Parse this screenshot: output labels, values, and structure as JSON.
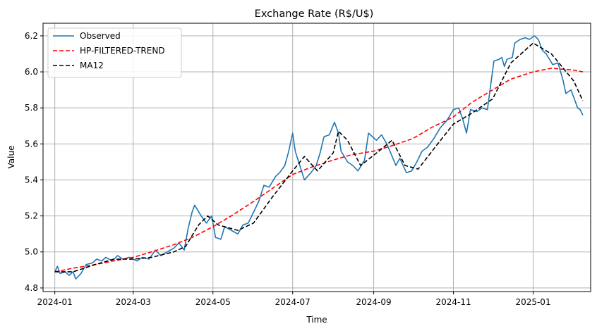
{
  "chart_data": {
    "type": "line",
    "title": "Exchange Rate (R$/U$)",
    "xlabel": "Time",
    "ylabel": "Value",
    "xlim": [
      "2023-12-23",
      "2025-02-14"
    ],
    "ylim": [
      4.78,
      6.27
    ],
    "x_ticks": [
      "2024-01",
      "2024-03",
      "2024-05",
      "2024-07",
      "2024-09",
      "2024-11",
      "2025-01"
    ],
    "y_ticks": [
      4.8,
      5.0,
      5.2,
      5.4,
      5.6,
      5.8,
      6.0,
      6.2
    ],
    "grid": true,
    "legend_position": "top-left",
    "series": [
      {
        "name": "Observed",
        "color": "#1f77b4",
        "style": "solid",
        "points": [
          [
            "2024-01-01",
            4.89
          ],
          [
            "2024-01-03",
            4.92
          ],
          [
            "2024-01-05",
            4.88
          ],
          [
            "2024-01-09",
            4.89
          ],
          [
            "2024-01-12",
            4.87
          ],
          [
            "2024-01-15",
            4.89
          ],
          [
            "2024-01-17",
            4.85
          ],
          [
            "2024-01-21",
            4.88
          ],
          [
            "2024-01-25",
            4.93
          ],
          [
            "2024-01-30",
            4.94
          ],
          [
            "2024-02-02",
            4.96
          ],
          [
            "2024-02-06",
            4.95
          ],
          [
            "2024-02-09",
            4.97
          ],
          [
            "2024-02-14",
            4.95
          ],
          [
            "2024-02-18",
            4.98
          ],
          [
            "2024-02-22",
            4.96
          ],
          [
            "2024-02-27",
            4.97
          ],
          [
            "2024-03-04",
            4.95
          ],
          [
            "2024-03-08",
            4.97
          ],
          [
            "2024-03-13",
            4.96
          ],
          [
            "2024-03-18",
            5.01
          ],
          [
            "2024-03-22",
            4.98
          ],
          [
            "2024-03-27",
            5.0
          ],
          [
            "2024-04-01",
            5.02
          ],
          [
            "2024-04-05",
            5.05
          ],
          [
            "2024-04-09",
            5.01
          ],
          [
            "2024-04-12",
            5.13
          ],
          [
            "2024-04-15",
            5.22
          ],
          [
            "2024-04-17",
            5.26
          ],
          [
            "2024-04-22",
            5.2
          ],
          [
            "2024-04-26",
            5.16
          ],
          [
            "2024-04-30",
            5.2
          ],
          [
            "2024-05-03",
            5.08
          ],
          [
            "2024-05-07",
            5.07
          ],
          [
            "2024-05-10",
            5.14
          ],
          [
            "2024-05-15",
            5.12
          ],
          [
            "2024-05-20",
            5.1
          ],
          [
            "2024-05-24",
            5.15
          ],
          [
            "2024-05-28",
            5.16
          ],
          [
            "2024-06-01",
            5.22
          ],
          [
            "2024-06-05",
            5.28
          ],
          [
            "2024-06-09",
            5.37
          ],
          [
            "2024-06-13",
            5.36
          ],
          [
            "2024-06-18",
            5.42
          ],
          [
            "2024-06-21",
            5.44
          ],
          [
            "2024-06-25",
            5.48
          ],
          [
            "2024-06-28",
            5.56
          ],
          [
            "2024-07-01",
            5.66
          ],
          [
            "2024-07-03",
            5.56
          ],
          [
            "2024-07-06",
            5.49
          ],
          [
            "2024-07-10",
            5.4
          ],
          [
            "2024-07-15",
            5.44
          ],
          [
            "2024-07-19",
            5.48
          ],
          [
            "2024-07-22",
            5.55
          ],
          [
            "2024-07-25",
            5.64
          ],
          [
            "2024-07-29",
            5.65
          ],
          [
            "2024-08-02",
            5.72
          ],
          [
            "2024-08-05",
            5.66
          ],
          [
            "2024-08-07",
            5.56
          ],
          [
            "2024-08-12",
            5.5
          ],
          [
            "2024-08-16",
            5.48
          ],
          [
            "2024-08-20",
            5.45
          ],
          [
            "2024-08-25",
            5.51
          ],
          [
            "2024-08-28",
            5.66
          ],
          [
            "2024-09-03",
            5.62
          ],
          [
            "2024-09-07",
            5.65
          ],
          [
            "2024-09-11",
            5.6
          ],
          [
            "2024-09-14",
            5.55
          ],
          [
            "2024-09-18",
            5.48
          ],
          [
            "2024-09-21",
            5.52
          ],
          [
            "2024-09-26",
            5.44
          ],
          [
            "2024-09-30",
            5.45
          ],
          [
            "2024-10-04",
            5.5
          ],
          [
            "2024-10-08",
            5.56
          ],
          [
            "2024-10-12",
            5.58
          ],
          [
            "2024-10-17",
            5.63
          ],
          [
            "2024-10-22",
            5.69
          ],
          [
            "2024-10-27",
            5.73
          ],
          [
            "2024-11-01",
            5.79
          ],
          [
            "2024-11-05",
            5.8
          ],
          [
            "2024-11-08",
            5.74
          ],
          [
            "2024-11-11",
            5.66
          ],
          [
            "2024-11-14",
            5.79
          ],
          [
            "2024-11-19",
            5.78
          ],
          [
            "2024-11-23",
            5.8
          ],
          [
            "2024-11-27",
            5.79
          ],
          [
            "2024-12-02",
            6.06
          ],
          [
            "2024-12-06",
            6.07
          ],
          [
            "2024-12-08",
            6.08
          ],
          [
            "2024-12-10",
            6.03
          ],
          [
            "2024-12-12",
            6.07
          ],
          [
            "2024-12-16",
            6.08
          ],
          [
            "2024-12-18",
            6.16
          ],
          [
            "2024-12-22",
            6.18
          ],
          [
            "2024-12-26",
            6.19
          ],
          [
            "2024-12-29",
            6.18
          ],
          [
            "2025-01-02",
            6.2
          ],
          [
            "2025-01-05",
            6.18
          ],
          [
            "2025-01-08",
            6.12
          ],
          [
            "2025-01-11",
            6.1
          ],
          [
            "2025-01-16",
            6.04
          ],
          [
            "2025-01-20",
            6.05
          ],
          [
            "2025-01-24",
            5.95
          ],
          [
            "2025-01-26",
            5.88
          ],
          [
            "2025-01-30",
            5.9
          ],
          [
            "2025-02-02",
            5.84
          ],
          [
            "2025-02-04",
            5.8
          ],
          [
            "2025-02-06",
            5.79
          ],
          [
            "2025-02-08",
            5.76
          ]
        ]
      },
      {
        "name": "HP-FILTERED-TREND",
        "color": "#ff0000",
        "style": "dashed",
        "points": [
          [
            "2024-01-01",
            4.89
          ],
          [
            "2024-01-15",
            4.91
          ],
          [
            "2024-02-01",
            4.93
          ],
          [
            "2024-02-15",
            4.95
          ],
          [
            "2024-03-01",
            4.97
          ],
          [
            "2024-03-15",
            5.0
          ],
          [
            "2024-04-01",
            5.04
          ],
          [
            "2024-04-15",
            5.08
          ],
          [
            "2024-05-01",
            5.14
          ],
          [
            "2024-05-15",
            5.2
          ],
          [
            "2024-06-01",
            5.28
          ],
          [
            "2024-06-15",
            5.35
          ],
          [
            "2024-07-01",
            5.43
          ],
          [
            "2024-07-15",
            5.47
          ],
          [
            "2024-08-01",
            5.51
          ],
          [
            "2024-08-15",
            5.54
          ],
          [
            "2024-09-01",
            5.56
          ],
          [
            "2024-09-15",
            5.59
          ],
          [
            "2024-10-01",
            5.63
          ],
          [
            "2024-10-15",
            5.69
          ],
          [
            "2024-11-01",
            5.75
          ],
          [
            "2024-11-15",
            5.83
          ],
          [
            "2024-12-01",
            5.9
          ],
          [
            "2024-12-15",
            5.96
          ],
          [
            "2025-01-01",
            6.0
          ],
          [
            "2025-01-15",
            6.02
          ],
          [
            "2025-02-01",
            6.01
          ],
          [
            "2025-02-08",
            6.0
          ]
        ]
      },
      {
        "name": "MA12",
        "color": "#000000",
        "style": "dashed",
        "points": [
          [
            "2024-01-01",
            4.89
          ],
          [
            "2024-01-15",
            4.89
          ],
          [
            "2024-02-01",
            4.93
          ],
          [
            "2024-02-15",
            4.96
          ],
          [
            "2024-03-01",
            4.96
          ],
          [
            "2024-03-15",
            4.97
          ],
          [
            "2024-04-01",
            5.0
          ],
          [
            "2024-04-10",
            5.03
          ],
          [
            "2024-04-20",
            5.15
          ],
          [
            "2024-04-27",
            5.2
          ],
          [
            "2024-05-05",
            5.15
          ],
          [
            "2024-05-20",
            5.12
          ],
          [
            "2024-06-01",
            5.16
          ],
          [
            "2024-06-15",
            5.3
          ],
          [
            "2024-07-01",
            5.45
          ],
          [
            "2024-07-10",
            5.53
          ],
          [
            "2024-07-20",
            5.45
          ],
          [
            "2024-08-01",
            5.55
          ],
          [
            "2024-08-05",
            5.67
          ],
          [
            "2024-08-12",
            5.62
          ],
          [
            "2024-08-22",
            5.48
          ],
          [
            "2024-09-05",
            5.56
          ],
          [
            "2024-09-15",
            5.62
          ],
          [
            "2024-09-25",
            5.48
          ],
          [
            "2024-10-05",
            5.46
          ],
          [
            "2024-10-20",
            5.6
          ],
          [
            "2024-11-01",
            5.71
          ],
          [
            "2024-11-15",
            5.77
          ],
          [
            "2024-12-01",
            5.85
          ],
          [
            "2024-12-15",
            6.05
          ],
          [
            "2025-01-01",
            6.16
          ],
          [
            "2025-01-15",
            6.1
          ],
          [
            "2025-02-01",
            5.95
          ],
          [
            "2025-02-08",
            5.84
          ]
        ]
      }
    ]
  }
}
